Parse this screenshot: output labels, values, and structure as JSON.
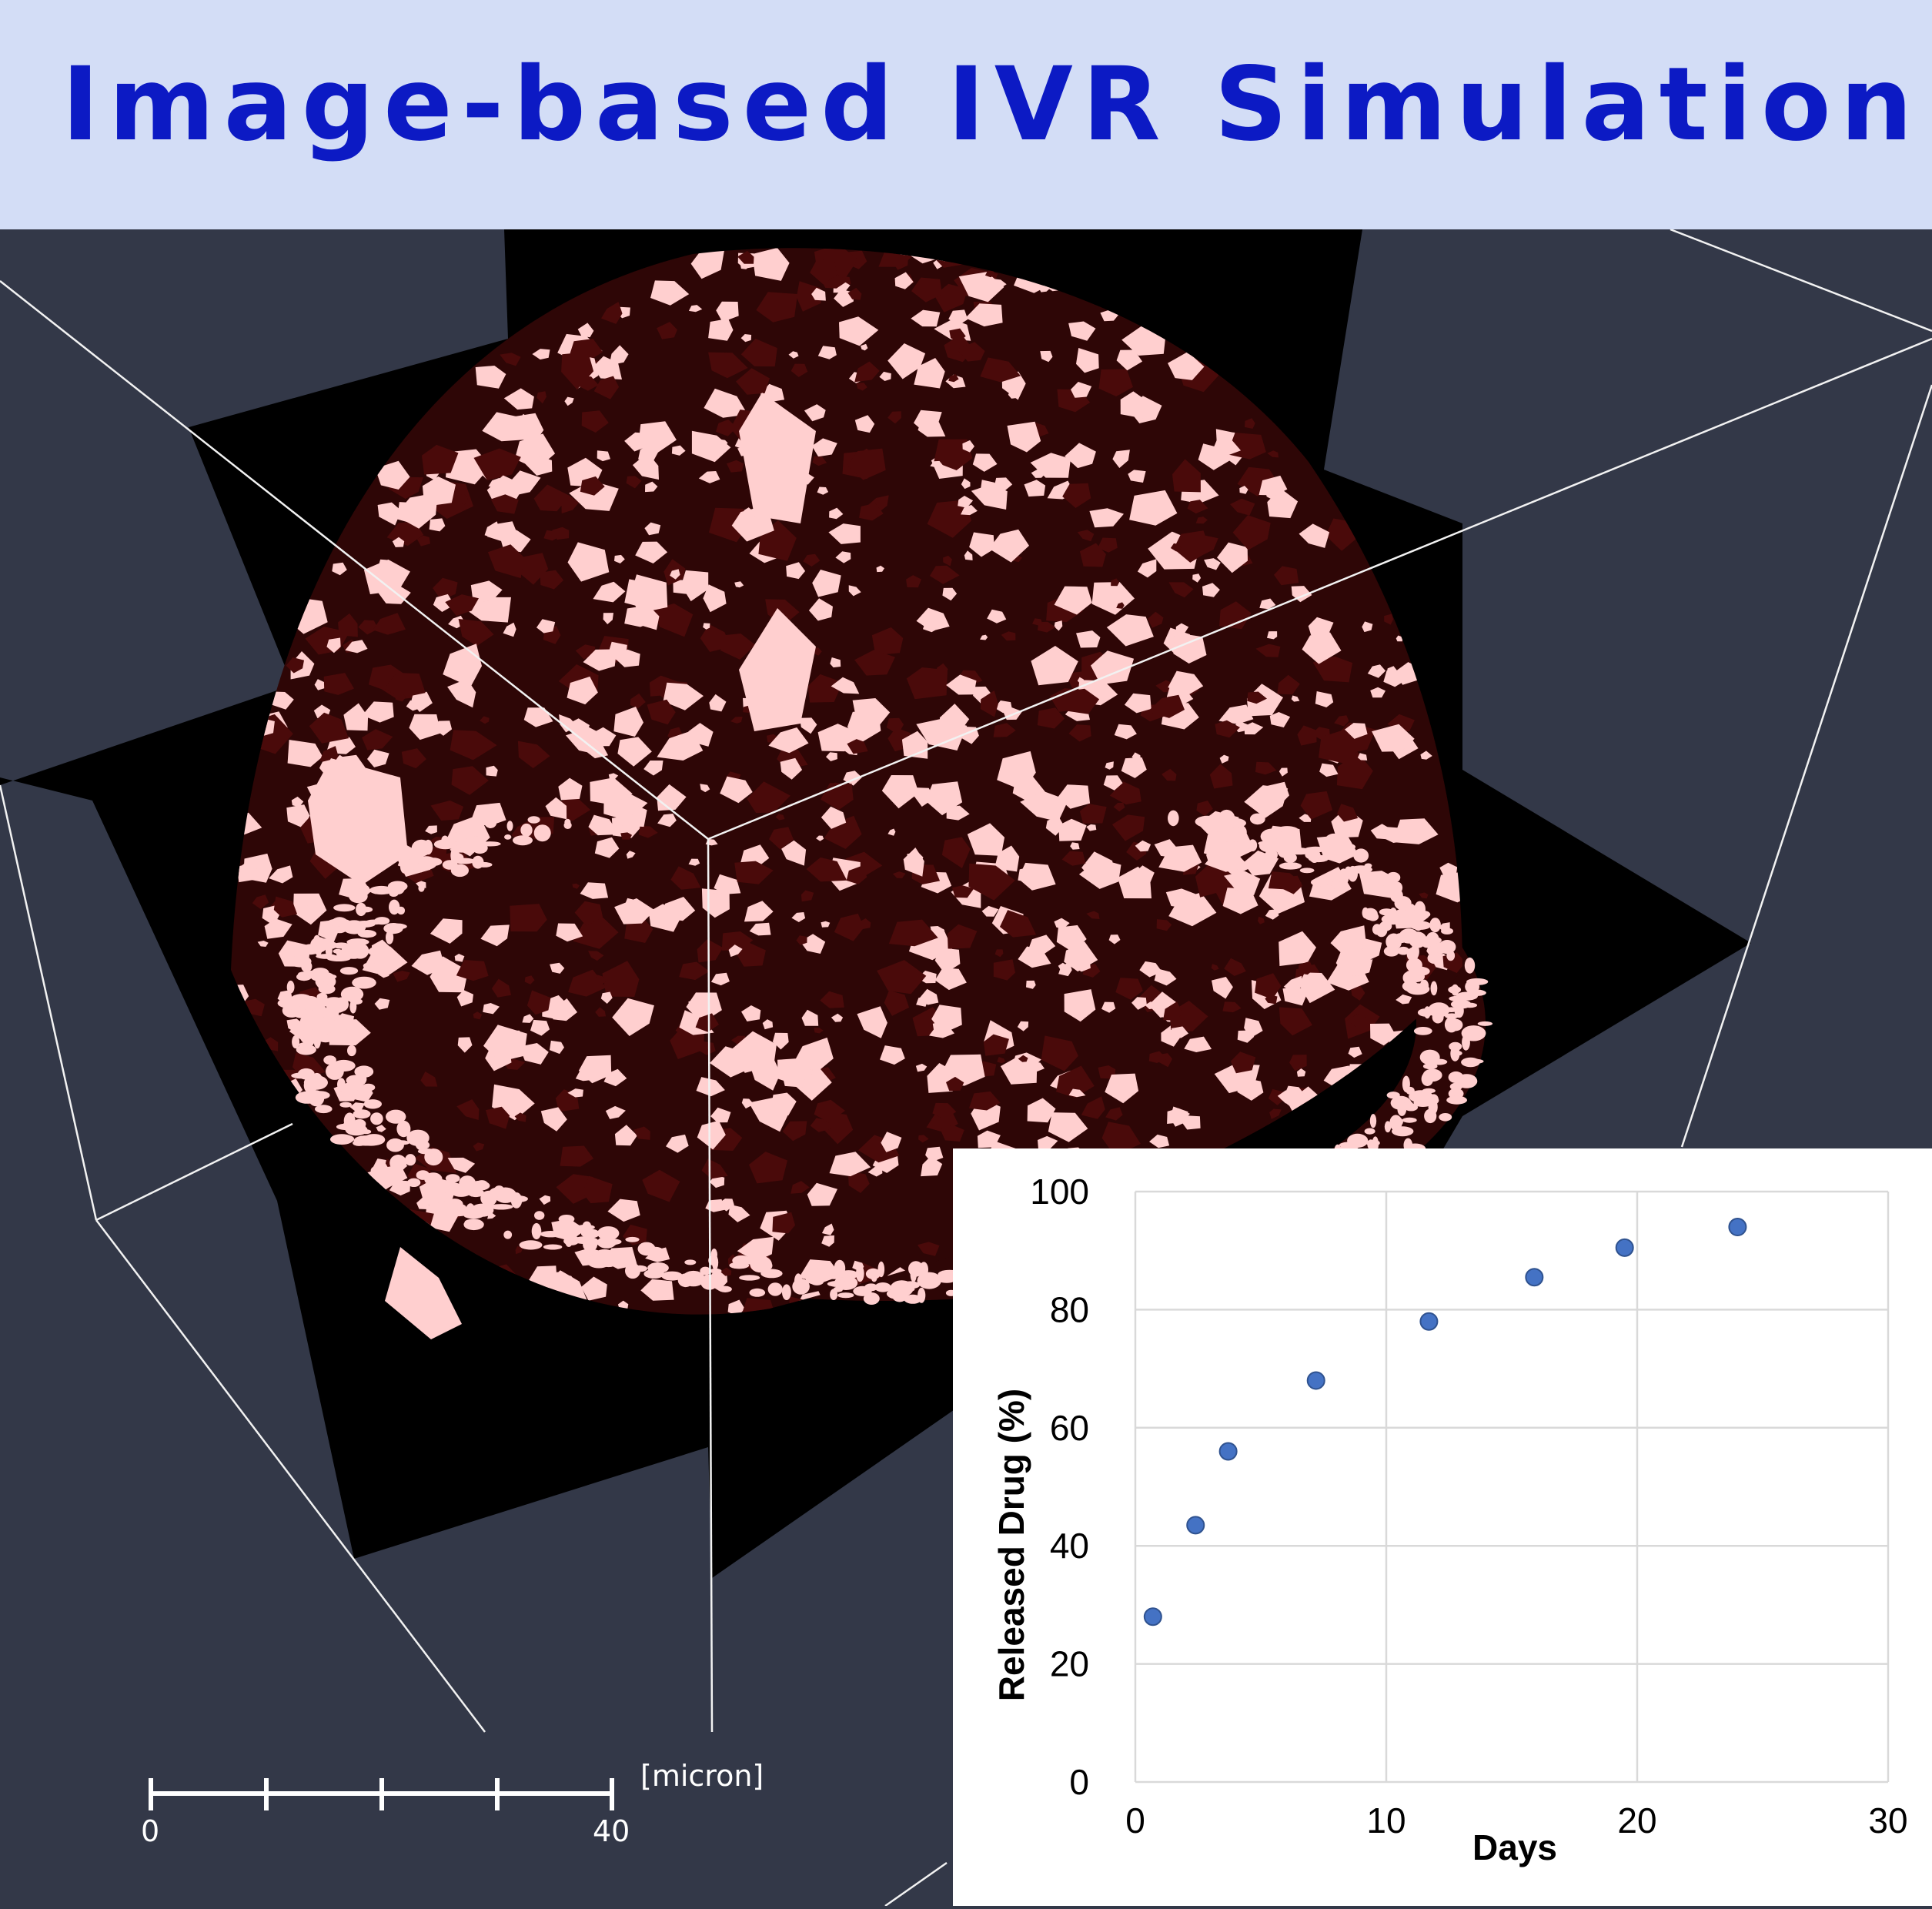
{
  "header": {
    "title": "Image-based IVR Simulation"
  },
  "scale_bar": {
    "min_label": "0",
    "max_label": "40",
    "unit_label": "[micron]"
  },
  "colors": {
    "header_bg": "#d3ddf6",
    "title": "#0c1ac4",
    "viewport_bg": "#333848",
    "particle": "#ffcfcf",
    "matrix": "#2e0606",
    "series_marker": "#4472c4"
  },
  "chart_data": {
    "type": "scatter",
    "title": "",
    "xlabel": "Days",
    "ylabel": "Released Drug (%)",
    "xlim": [
      0,
      30
    ],
    "ylim": [
      0,
      100
    ],
    "xticks": [
      0,
      10,
      20,
      30
    ],
    "yticks": [
      0,
      20,
      40,
      60,
      80,
      100
    ],
    "grid": true,
    "legend": "none",
    "series": [
      {
        "x": [
          0.7,
          2.4,
          3.7,
          7.2,
          11.7,
          15.9,
          19.5,
          24.0
        ],
        "y": [
          28,
          43.5,
          56,
          68,
          78,
          85.5,
          90.5,
          94
        ]
      }
    ]
  }
}
